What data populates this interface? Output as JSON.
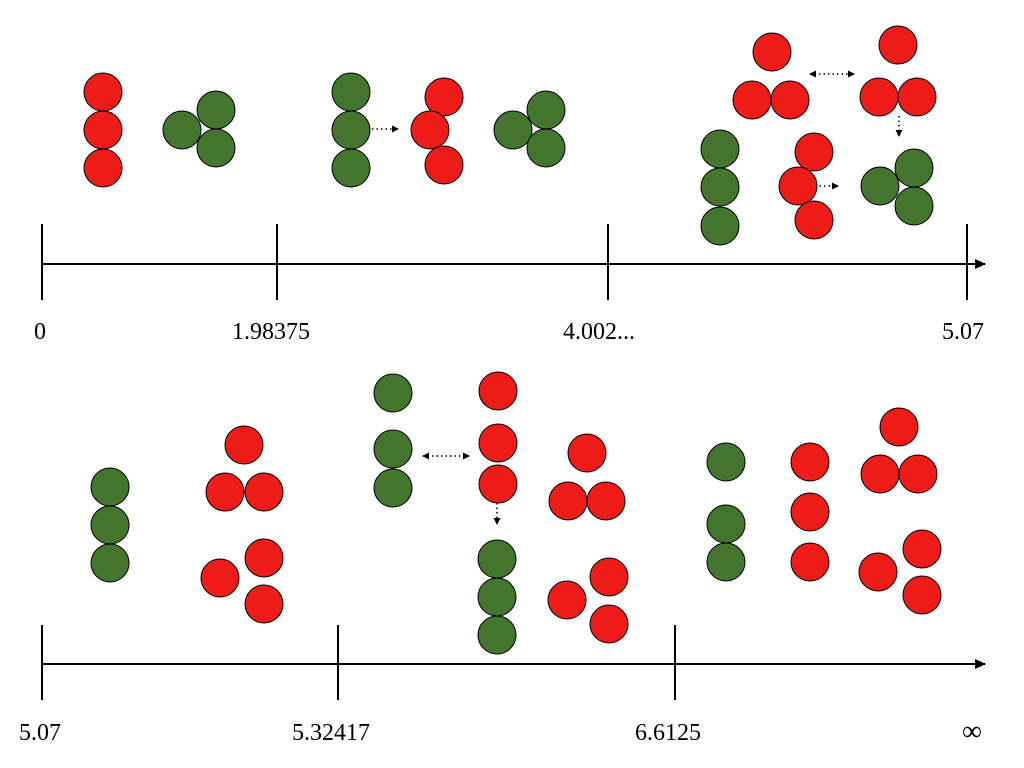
{
  "colors": {
    "red": "#ee1c18",
    "green": "#44752f",
    "stroke": "#000000"
  },
  "axes": [
    {
      "name": "upper",
      "tick_labels": [
        "0",
        "1.98375",
        "4.002...",
        "5.07"
      ]
    },
    {
      "name": "lower",
      "tick_labels": [
        "5.07",
        "5.32417",
        "6.6125",
        "∞"
      ]
    }
  ]
}
